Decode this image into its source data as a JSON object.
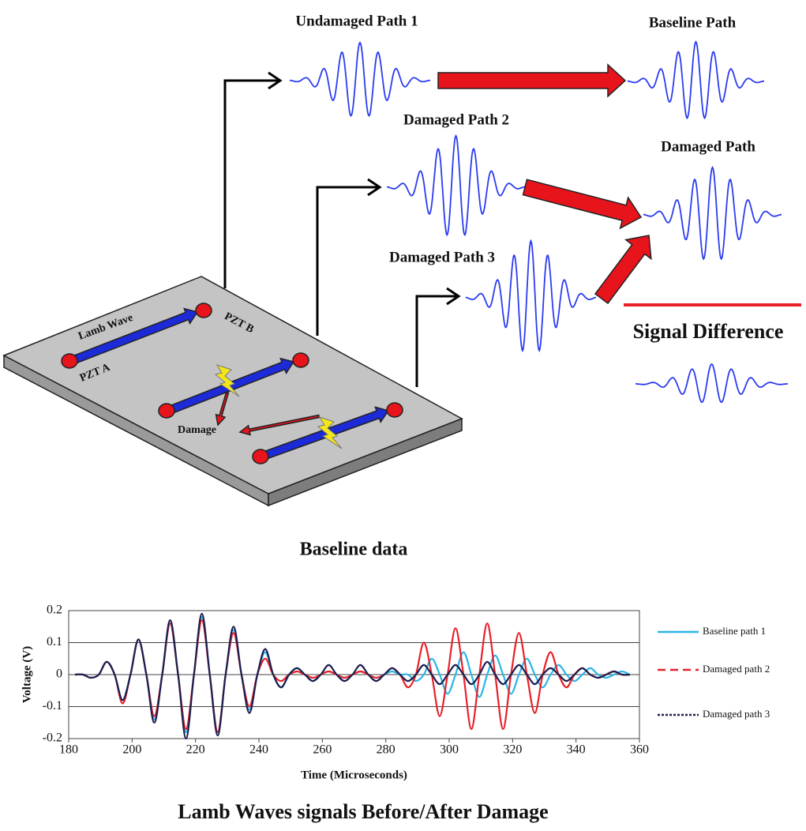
{
  "diagram": {
    "labels": {
      "undamaged_path_1": "Undamaged Path 1",
      "baseline_path": "Baseline Path",
      "damaged_path_2": "Damaged Path 2",
      "damaged_path": "Damaged Path",
      "damaged_path_3": "Damaged Path 3",
      "signal_difference": "Signal Difference",
      "lamb_wave": "Lamb Wave",
      "pzt_b": "PZT B",
      "pzt_a": "PZT A",
      "damage": "Damage"
    },
    "caption": "Baseline data"
  },
  "chart_data": {
    "type": "line",
    "title": "Lamb Waves signals Before/After Damage",
    "xlabel": "Time (Microseconds)",
    "ylabel": "Voltage (V)",
    "x": [
      182,
      184.5,
      187,
      189.5,
      192,
      194.5,
      197,
      199.5,
      202,
      204.5,
      207,
      209.5,
      212,
      214.5,
      217,
      219.5,
      222,
      224.5,
      227,
      229.5,
      232,
      234.5,
      237,
      239.5,
      242,
      244.5,
      247,
      249.5,
      252,
      254.5,
      257,
      259.5,
      262,
      264.5,
      267,
      269.5,
      272,
      274.5,
      277,
      279.5,
      282,
      284.5,
      287,
      289.5,
      292,
      294.5,
      297,
      299.5,
      302,
      304.5,
      307,
      309.5,
      312,
      314.5,
      317,
      319.5,
      322,
      324.5,
      327,
      329.5,
      332,
      334.5,
      337,
      339.5,
      342,
      344.5,
      347,
      349.5,
      352,
      354.5,
      357
    ],
    "series": [
      {
        "name": "Baseline path 1",
        "color": "#2bb5e8",
        "dash": "solid",
        "values": [
          0,
          0,
          -0.01,
          0,
          0.04,
          0,
          -0.08,
          0,
          0.11,
          0,
          -0.14,
          0,
          0.16,
          0,
          -0.18,
          0,
          0.18,
          0,
          -0.18,
          0,
          0.14,
          0,
          -0.11,
          0,
          0.07,
          0,
          -0.04,
          0,
          0.02,
          0,
          -0.02,
          0,
          0.01,
          0,
          -0.01,
          0,
          0.01,
          0,
          -0.01,
          0,
          0.01,
          0,
          0,
          -0.02,
          0,
          0.05,
          0,
          -0.06,
          0,
          0.07,
          0,
          -0.07,
          0,
          0.06,
          0,
          -0.06,
          0,
          0.05,
          0,
          -0.04,
          0,
          0.03,
          0,
          -0.02,
          0,
          0.02,
          0,
          -0.01,
          0,
          0.01,
          0
        ]
      },
      {
        "name": "Damaged path 2",
        "color": "#e8202a",
        "dash": "dashed",
        "values": [
          0,
          0,
          -0.01,
          0,
          0.04,
          0,
          -0.09,
          0,
          0.11,
          0,
          -0.13,
          0,
          0.16,
          0,
          -0.17,
          0,
          0.17,
          0,
          -0.18,
          0,
          0.13,
          0,
          -0.1,
          0,
          0.05,
          0,
          -0.02,
          0,
          0.01,
          0,
          -0.01,
          0,
          0.01,
          0,
          -0.01,
          0,
          0.01,
          0,
          -0.01,
          0,
          0.02,
          0,
          -0.04,
          0,
          0.1,
          0,
          -0.13,
          0,
          0.145,
          0,
          -0.17,
          0,
          0.16,
          0,
          -0.17,
          0,
          0.13,
          0,
          -0.12,
          0,
          0.07,
          0,
          -0.04,
          0,
          0.02,
          0,
          -0.01,
          0,
          0.01,
          0,
          0
        ]
      },
      {
        "name": "Damaged path 3",
        "color": "#1a1f4f",
        "dash": "dotted",
        "values": [
          0,
          0,
          -0.01,
          0,
          0.04,
          0,
          -0.08,
          0,
          0.11,
          0,
          -0.15,
          0,
          0.17,
          0,
          -0.2,
          0,
          0.19,
          0,
          -0.19,
          0,
          0.15,
          0,
          -0.12,
          0,
          0.08,
          0,
          -0.04,
          0,
          0.02,
          0,
          -0.02,
          0,
          0.03,
          0,
          -0.02,
          0,
          0.03,
          0,
          -0.02,
          0,
          0.02,
          0,
          -0.02,
          0,
          0.03,
          0,
          -0.03,
          0,
          0.03,
          0,
          -0.03,
          0,
          0.04,
          0,
          -0.03,
          0,
          0.03,
          0,
          -0.03,
          0,
          0.02,
          0,
          -0.02,
          0,
          0.02,
          0,
          -0.01,
          0,
          0.01,
          0,
          0
        ]
      }
    ],
    "xlim": [
      180,
      360
    ],
    "xticks": [
      180,
      200,
      220,
      240,
      260,
      280,
      300,
      320,
      340,
      360
    ],
    "ylim": [
      -0.2,
      0.2
    ],
    "yticks": [
      -0.2,
      -0.1,
      0,
      0.1,
      0.2
    ],
    "grid": true
  }
}
